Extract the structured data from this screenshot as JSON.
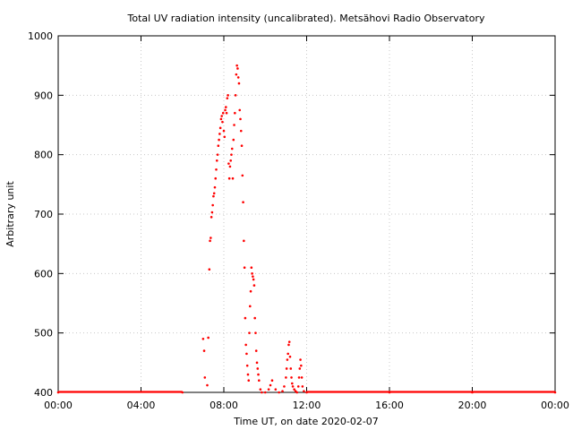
{
  "chart_data": {
    "type": "scatter",
    "title": "Total UV radiation intensity (uncalibrated). Metsähovi Radio Observatory",
    "xlabel": "Time UT, on date 2020-02-07",
    "ylabel": "Arbitrary unit",
    "xlim": [
      "00:00",
      "24:00"
    ],
    "ylim": [
      400,
      1000
    ],
    "x_ticks": [
      "00:00",
      "04:00",
      "08:00",
      "12:00",
      "16:00",
      "20:00",
      "00:00"
    ],
    "y_ticks": [
      400,
      500,
      600,
      700,
      800,
      900,
      1000
    ],
    "grid": true,
    "marker_color": "#ff0000",
    "series": [
      {
        "values": [
          [
            "00:00",
            400
          ],
          [
            "06:00",
            400
          ],
          [
            "07:00",
            490
          ],
          [
            "07:03",
            470
          ],
          [
            "07:05",
            425
          ],
          [
            "07:12",
            412
          ],
          [
            "07:15",
            492
          ],
          [
            "07:18",
            607
          ],
          [
            "07:20",
            655
          ],
          [
            "07:22",
            660
          ],
          [
            "07:24",
            695
          ],
          [
            "07:26",
            703
          ],
          [
            "07:28",
            715
          ],
          [
            "07:30",
            730
          ],
          [
            "07:32",
            735
          ],
          [
            "07:34",
            745
          ],
          [
            "07:36",
            760
          ],
          [
            "07:38",
            775
          ],
          [
            "07:40",
            790
          ],
          [
            "07:42",
            800
          ],
          [
            "07:44",
            815
          ],
          [
            "07:46",
            825
          ],
          [
            "07:48",
            835
          ],
          [
            "07:50",
            845
          ],
          [
            "07:52",
            860
          ],
          [
            "07:54",
            865
          ],
          [
            "07:56",
            855
          ],
          [
            "07:58",
            870
          ],
          [
            "08:00",
            840
          ],
          [
            "08:02",
            830
          ],
          [
            "08:04",
            875
          ],
          [
            "08:06",
            880
          ],
          [
            "08:08",
            870
          ],
          [
            "08:10",
            895
          ],
          [
            "08:12",
            900
          ],
          [
            "08:14",
            785
          ],
          [
            "08:16",
            760
          ],
          [
            "08:18",
            780
          ],
          [
            "08:20",
            790
          ],
          [
            "08:22",
            800
          ],
          [
            "08:24",
            810
          ],
          [
            "08:26",
            760
          ],
          [
            "08:28",
            825
          ],
          [
            "08:30",
            850
          ],
          [
            "08:32",
            870
          ],
          [
            "08:34",
            900
          ],
          [
            "08:36",
            935
          ],
          [
            "08:38",
            950
          ],
          [
            "08:40",
            945
          ],
          [
            "08:42",
            930
          ],
          [
            "08:44",
            920
          ],
          [
            "08:46",
            875
          ],
          [
            "08:48",
            860
          ],
          [
            "08:50",
            840
          ],
          [
            "08:52",
            815
          ],
          [
            "08:54",
            765
          ],
          [
            "08:56",
            720
          ],
          [
            "08:58",
            655
          ],
          [
            "09:00",
            610
          ],
          [
            "09:02",
            525
          ],
          [
            "09:04",
            480
          ],
          [
            "09:06",
            465
          ],
          [
            "09:08",
            445
          ],
          [
            "09:10",
            430
          ],
          [
            "09:12",
            420
          ],
          [
            "09:14",
            500
          ],
          [
            "09:16",
            545
          ],
          [
            "09:18",
            570
          ],
          [
            "09:20",
            610
          ],
          [
            "09:22",
            600
          ],
          [
            "09:24",
            595
          ],
          [
            "09:26",
            590
          ],
          [
            "09:28",
            580
          ],
          [
            "09:30",
            525
          ],
          [
            "09:32",
            500
          ],
          [
            "09:34",
            470
          ],
          [
            "09:36",
            450
          ],
          [
            "09:38",
            440
          ],
          [
            "09:40",
            430
          ],
          [
            "09:42",
            420
          ],
          [
            "09:46",
            405
          ],
          [
            "09:50",
            400
          ],
          [
            "10:00",
            400
          ],
          [
            "10:10",
            405
          ],
          [
            "10:15",
            412
          ],
          [
            "10:20",
            420
          ],
          [
            "10:30",
            405
          ],
          [
            "10:40",
            400
          ],
          [
            "10:50",
            402
          ],
          [
            "10:55",
            410
          ],
          [
            "11:00",
            425
          ],
          [
            "11:02",
            440
          ],
          [
            "11:04",
            455
          ],
          [
            "11:06",
            465
          ],
          [
            "11:08",
            480
          ],
          [
            "11:10",
            485
          ],
          [
            "11:12",
            460
          ],
          [
            "11:14",
            440
          ],
          [
            "11:16",
            425
          ],
          [
            "11:18",
            415
          ],
          [
            "11:20",
            410
          ],
          [
            "11:24",
            405
          ],
          [
            "11:28",
            402
          ],
          [
            "11:32",
            400
          ],
          [
            "11:36",
            410
          ],
          [
            "11:38",
            425
          ],
          [
            "11:40",
            440
          ],
          [
            "11:42",
            455
          ],
          [
            "11:44",
            445
          ],
          [
            "11:46",
            425
          ],
          [
            "11:48",
            410
          ],
          [
            "11:52",
            402
          ],
          [
            "12:00",
            400
          ],
          [
            "16:00",
            400
          ],
          [
            "20:00",
            400
          ],
          [
            "24:00",
            400
          ]
        ]
      }
    ]
  }
}
